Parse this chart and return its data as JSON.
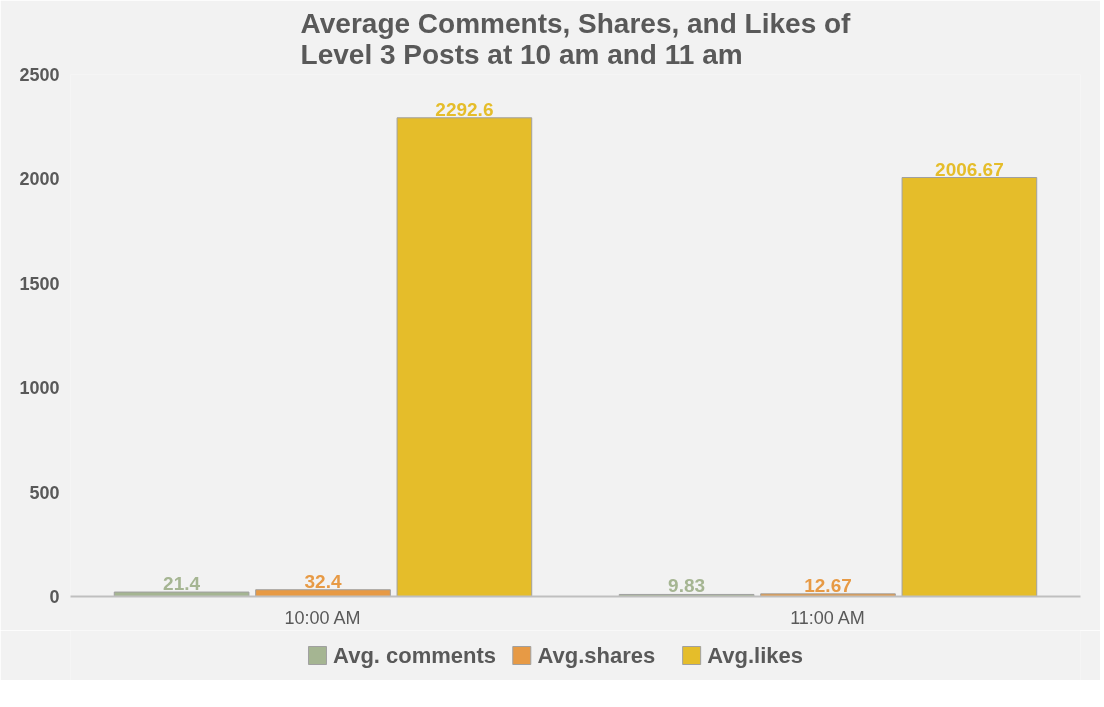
{
  "chart_data": {
    "type": "bar",
    "title": "Average Comments, Shares, and Likes of Level 3 Posts at 10 am and 11 am",
    "categories": [
      "10:00 AM",
      "11:00 AM"
    ],
    "series": [
      {
        "name": "Avg. comments",
        "color": "#a5b592",
        "values": [
          21.4,
          9.83
        ]
      },
      {
        "name": "Avg.shares",
        "color": "#e79a45",
        "values": [
          32.4,
          12.67
        ]
      },
      {
        "name": "Avg.likes",
        "color": "#e5bd2a",
        "values": [
          2292.6,
          2006.67
        ]
      }
    ],
    "ylim": [
      0,
      2500
    ],
    "yticks": [
      0,
      500,
      1000,
      1500,
      2000,
      2500
    ],
    "grid": false,
    "legend": "bottom",
    "data_labels": true
  }
}
